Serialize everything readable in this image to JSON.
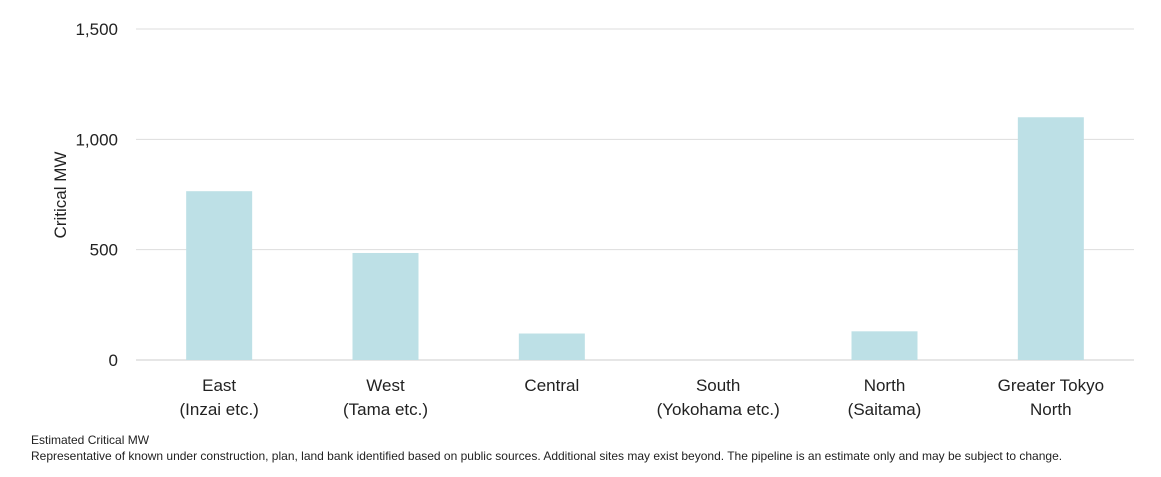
{
  "colors": {
    "bar": "#bde0e6",
    "grid": "#dddddd",
    "axis": "#cccccc"
  },
  "chart_data": {
    "type": "bar",
    "categories": [
      [
        "East",
        "(Inzai etc.)"
      ],
      [
        "West",
        "(Tama etc.)"
      ],
      [
        "Central"
      ],
      [
        "South",
        "(Yokohama etc.)"
      ],
      [
        "North",
        "(Saitama)"
      ],
      [
        "Greater Tokyo",
        "North"
      ]
    ],
    "values": [
      765,
      485,
      120,
      0,
      130,
      1100
    ],
    "ylabel": "Critical MW",
    "xlabel": "",
    "ylim": [
      0,
      1500
    ],
    "yticks": [
      0,
      500,
      1000,
      1500
    ],
    "ytick_labels": [
      "0",
      "500",
      "1,000",
      "1,500"
    ],
    "grid": true
  },
  "notes": {
    "line1": "Estimated Critical MW",
    "line2": "Representative of known under construction, plan, land bank identified based on public sources. Additional sites may exist beyond. The pipeline is an estimate only and may be subject to change."
  }
}
